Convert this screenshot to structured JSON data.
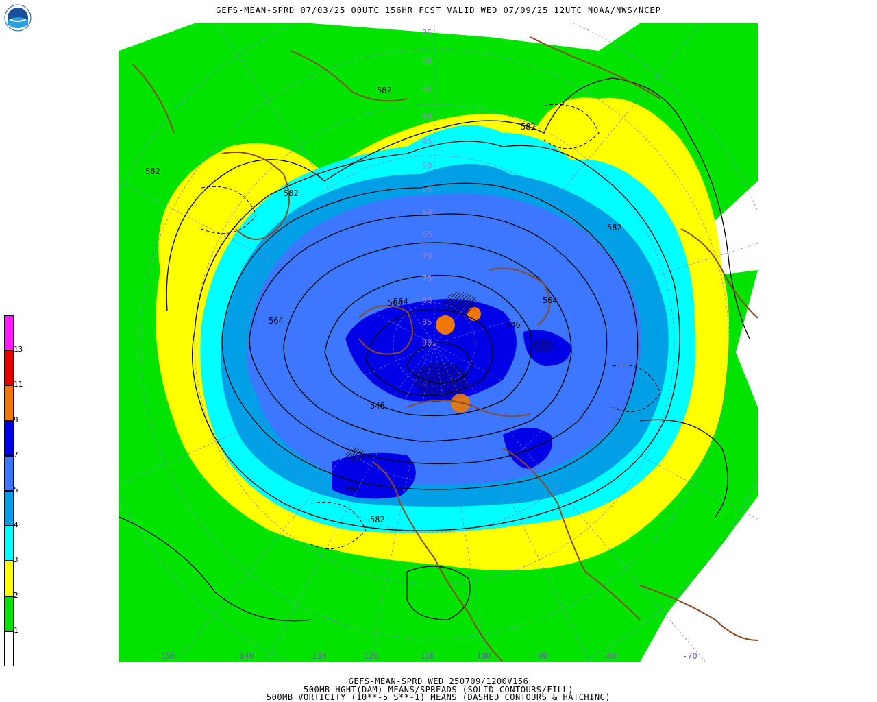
{
  "header": {
    "title": "GEFS-MEAN-SPRD 07/03/25 00UTC 156HR FCST VALID WED 07/09/25 12UTC NOAA/NWS/NCEP",
    "logo_text": "NOAA"
  },
  "legend": {
    "colors": [
      "#ffffff",
      "#00e400",
      "#ffff00",
      "#00ffff",
      "#00a0e6",
      "#3c78ff",
      "#0000e6",
      "#f07800",
      "#e60000",
      "#ff19ff"
    ],
    "labels": [
      "1",
      "2",
      "3",
      "4",
      "5",
      "7",
      "9",
      "11",
      "13"
    ]
  },
  "map": {
    "height_labels": [
      "582",
      "582",
      "582",
      "582",
      "582",
      "564",
      "564",
      "564",
      "564",
      "546",
      "546",
      "564",
      "582"
    ],
    "latitude_labels": [
      "25",
      "30",
      "35",
      "40",
      "45",
      "50",
      "55",
      "60",
      "65",
      "70",
      "75",
      "80",
      "85",
      "90"
    ],
    "longitude_labels": [
      "-150",
      "-140",
      "-130",
      "-120",
      "-110",
      "-100",
      "-90",
      "-80",
      "-70"
    ],
    "colors": {
      "coast": "#8b4a22",
      "grid": "#7b6ae0",
      "contour": "#000000"
    }
  },
  "footer": {
    "line1": "GEFS-MEAN-SPRD WED 250709/1200V156",
    "line2": "500MB HGHT(DAM) MEANS/SPREADS (SOLID CONTOURS/FILL)",
    "line3": "500MB VORTICITY (10**-5 S**-1) MEANS (DASHED CONTOURS & HATCHING)"
  }
}
